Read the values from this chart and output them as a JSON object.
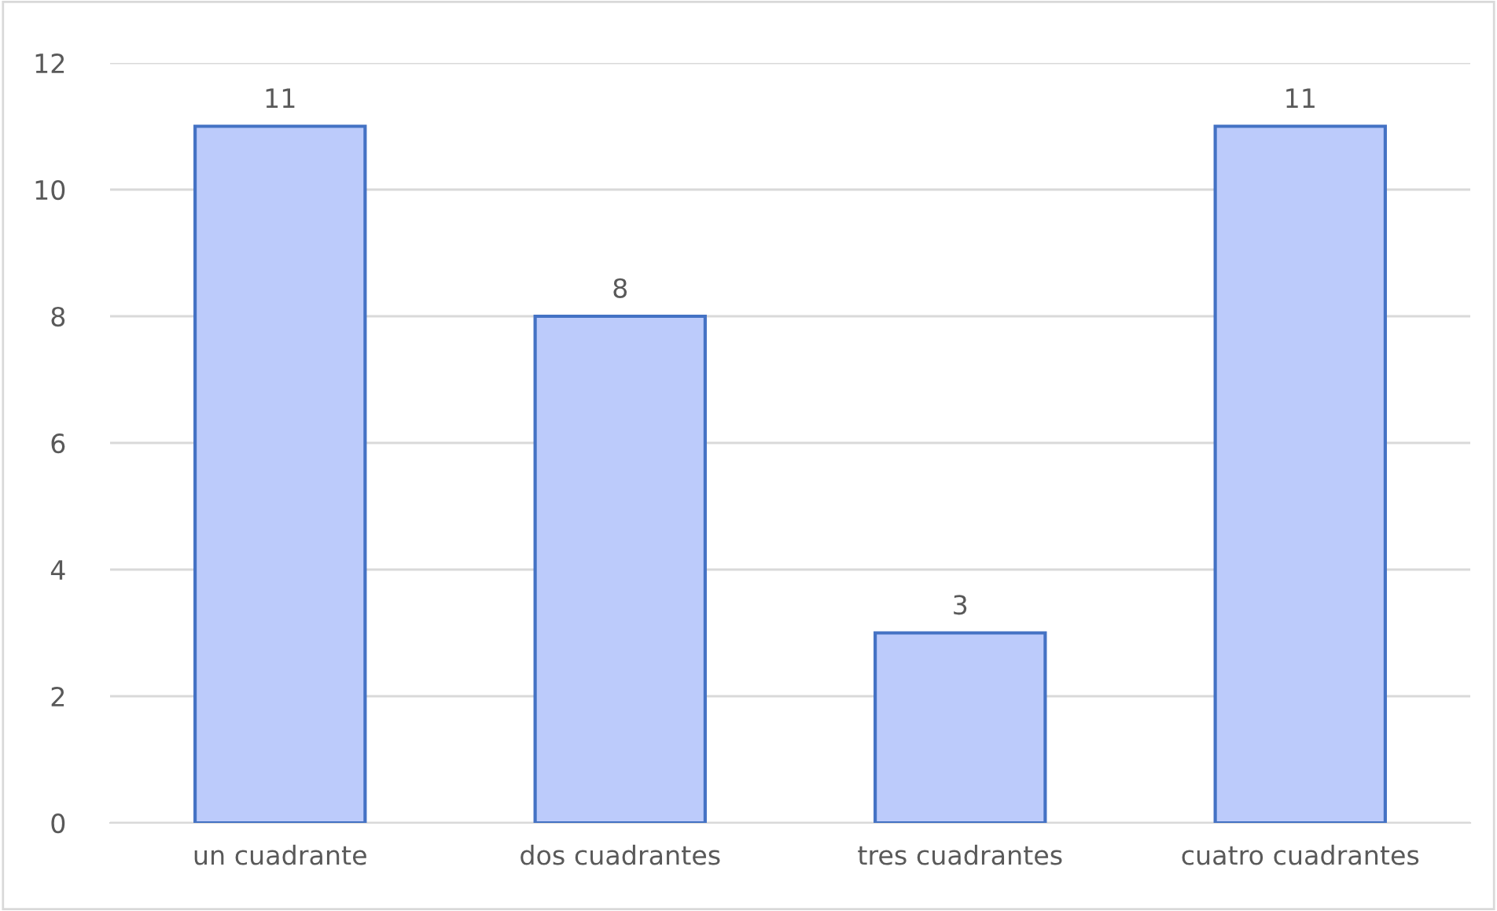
{
  "chart_data": {
    "type": "bar",
    "categories": [
      "un cuadrante",
      "dos cuadrantes",
      "tres cuadrantes",
      "cuatro cuadrantes"
    ],
    "values": [
      11,
      8,
      3,
      11
    ],
    "color": "#bccbfb",
    "ylim": [
      0,
      12
    ],
    "yticks": [
      0,
      2,
      4,
      6,
      8,
      10,
      12
    ],
    "grid": "y",
    "data_labels": true,
    "legend": false
  }
}
